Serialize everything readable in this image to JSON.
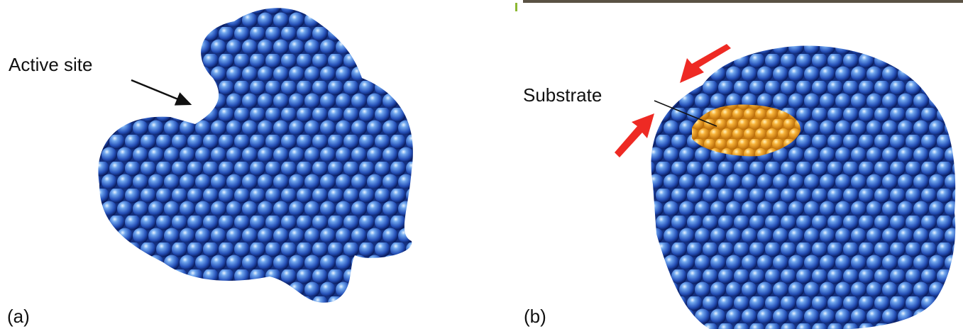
{
  "panels": [
    {
      "label": "(a)",
      "annotation": "Active site"
    },
    {
      "label": "(b)",
      "annotation": "Substrate"
    }
  ]
}
